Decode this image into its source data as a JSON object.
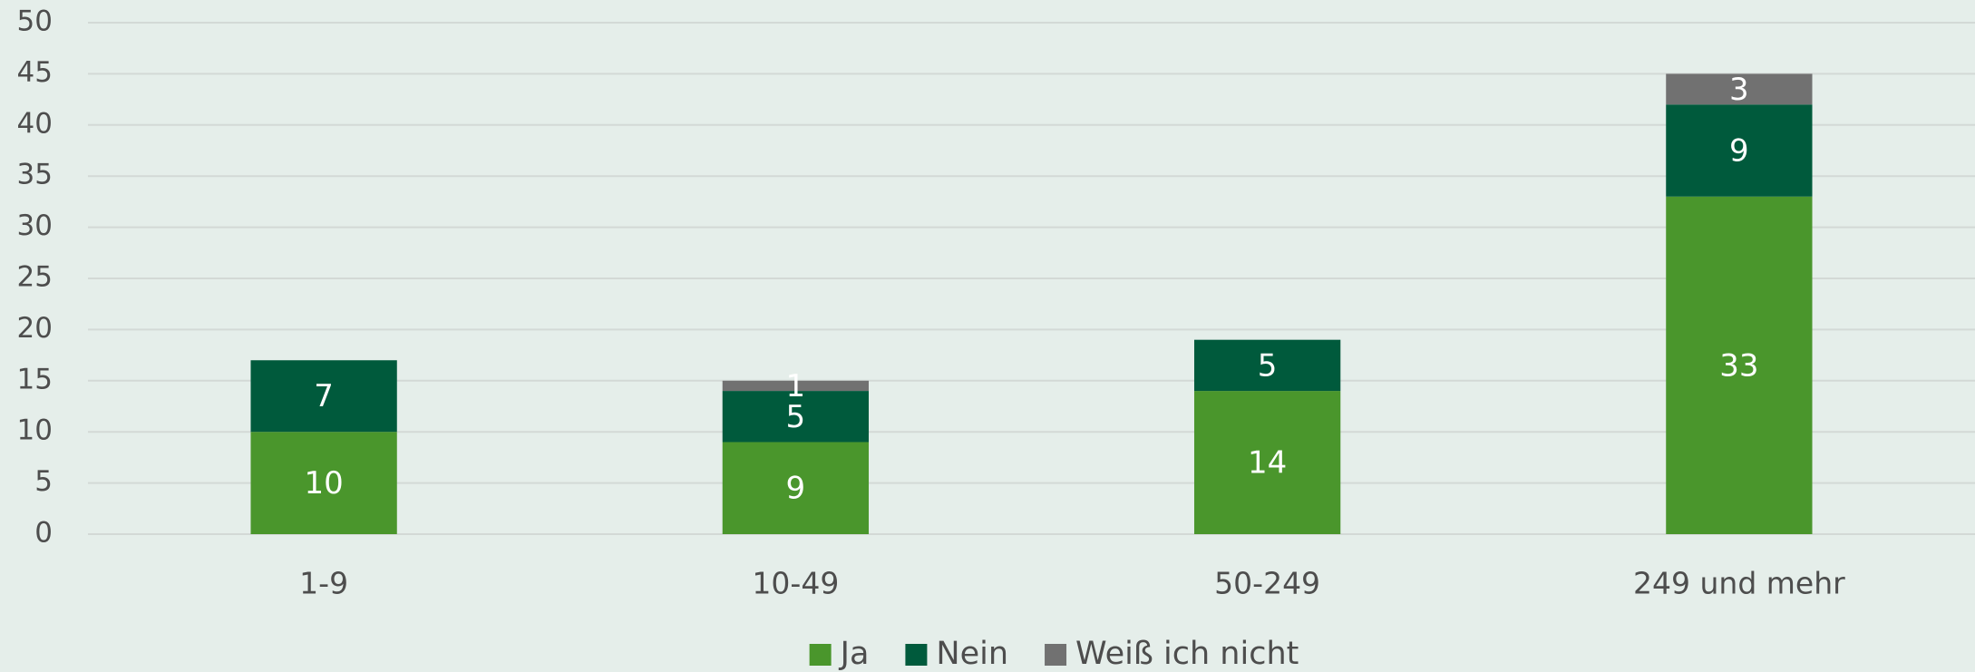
{
  "chart_data": {
    "type": "stacked_bar",
    "categories": [
      "1-9",
      "10-49",
      "50-249",
      "249 und mehr"
    ],
    "series": [
      {
        "name": "Ja",
        "color": "#4a962c",
        "values": [
          10,
          9,
          14,
          33
        ]
      },
      {
        "name": "Nein",
        "color": "#005a3c",
        "values": [
          7,
          5,
          5,
          9
        ]
      },
      {
        "name": "Weiß ich nicht",
        "color": "#717171",
        "values": [
          null,
          1,
          null,
          3
        ]
      }
    ],
    "ylim": [
      0,
      50
    ],
    "yticks": [
      0,
      5,
      10,
      15,
      20,
      25,
      30,
      35,
      40,
      45,
      50
    ],
    "grid": true,
    "legend": "bottom"
  }
}
